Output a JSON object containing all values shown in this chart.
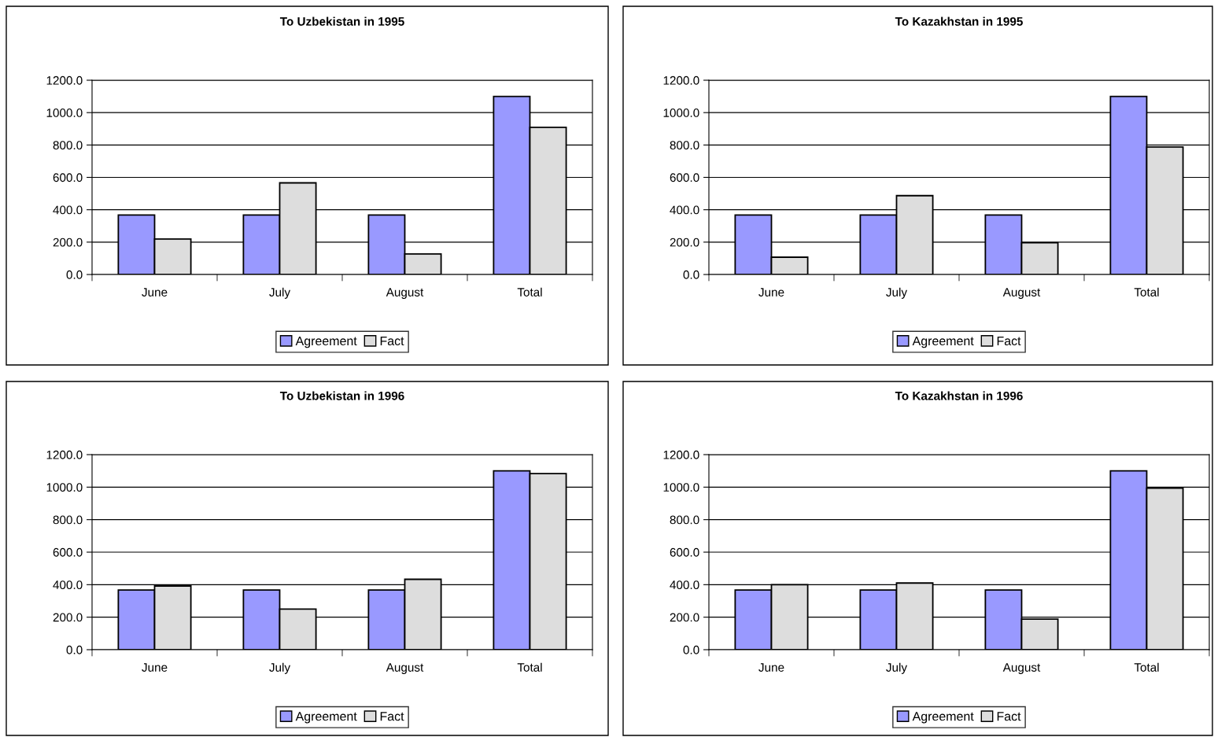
{
  "chart_data": [
    {
      "type": "bar",
      "title": "To Uzbekistan in 1995",
      "categories": [
        "June",
        "July",
        "August",
        "Total"
      ],
      "series": [
        {
          "name": "Agreement",
          "color": "#9999ff",
          "values": [
            367,
            367,
            367,
            1100
          ]
        },
        {
          "name": "Fact",
          "color": "#dddddd",
          "values": [
            219,
            566,
            127,
            909
          ]
        }
      ],
      "ylim": [
        0,
        1200
      ],
      "yticks": [
        {
          "value": 0,
          "label": "0.0"
        },
        {
          "value": 200,
          "label": "200.0"
        },
        {
          "value": 400,
          "label": "400.0"
        },
        {
          "value": 600,
          "label": "600.0"
        },
        {
          "value": 800,
          "label": "800.0"
        },
        {
          "value": 1000,
          "label": "1000.0"
        },
        {
          "value": 1200,
          "label": "1200.0"
        }
      ],
      "grid": "y",
      "legend": "bottom"
    },
    {
      "type": "bar",
      "title": "To Kazakhstan in 1995",
      "categories": [
        "June",
        "July",
        "August",
        "Total"
      ],
      "series": [
        {
          "name": "Agreement",
          "color": "#9999ff",
          "values": [
            367,
            367,
            367,
            1100
          ]
        },
        {
          "name": "Fact",
          "color": "#dddddd",
          "values": [
            107,
            487,
            196,
            788
          ]
        }
      ],
      "ylim": [
        0,
        1200
      ],
      "yticks": [
        {
          "value": 0,
          "label": "0.0"
        },
        {
          "value": 200,
          "label": "200.0"
        },
        {
          "value": 400,
          "label": "400.0"
        },
        {
          "value": 600,
          "label": "600.0"
        },
        {
          "value": 800,
          "label": "800.0"
        },
        {
          "value": 1000,
          "label": "1000.0"
        },
        {
          "value": 1200,
          "label": "1200.0"
        }
      ],
      "grid": "y",
      "legend": "bottom"
    },
    {
      "type": "bar",
      "title": "To Uzbekistan in 1996",
      "categories": [
        "June",
        "July",
        "August",
        "Total"
      ],
      "series": [
        {
          "name": "Agreement",
          "color": "#9999ff",
          "values": [
            367,
            367,
            367,
            1100
          ]
        },
        {
          "name": "Fact",
          "color": "#dddddd",
          "values": [
            392,
            250,
            433,
            1083
          ]
        }
      ],
      "ylim": [
        0,
        1200
      ],
      "yticks": [
        {
          "value": 0,
          "label": "0.0"
        },
        {
          "value": 200,
          "label": "200.0"
        },
        {
          "value": 400,
          "label": "400.0"
        },
        {
          "value": 600,
          "label": "600.0"
        },
        {
          "value": 800,
          "label": "800.0"
        },
        {
          "value": 1000,
          "label": "1000.0"
        },
        {
          "value": 1200,
          "label": "1200.0"
        }
      ],
      "grid": "y",
      "legend": "bottom"
    },
    {
      "type": "bar",
      "title": "To Kazakhstan in 1996",
      "categories": [
        "June",
        "July",
        "August",
        "Total"
      ],
      "series": [
        {
          "name": "Agreement",
          "color": "#9999ff",
          "values": [
            367,
            367,
            367,
            1100
          ]
        },
        {
          "name": "Fact",
          "color": "#dddddd",
          "values": [
            400,
            410,
            188,
            994
          ]
        }
      ],
      "ylim": [
        0,
        1200
      ],
      "yticks": [
        {
          "value": 0,
          "label": "0.0"
        },
        {
          "value": 200,
          "label": "200.0"
        },
        {
          "value": 400,
          "label": "400.0"
        },
        {
          "value": 600,
          "label": "600.0"
        },
        {
          "value": 800,
          "label": "800.0"
        },
        {
          "value": 1000,
          "label": "1000.0"
        },
        {
          "value": 1200,
          "label": "1200.0"
        }
      ],
      "grid": "y",
      "legend": "bottom"
    }
  ]
}
